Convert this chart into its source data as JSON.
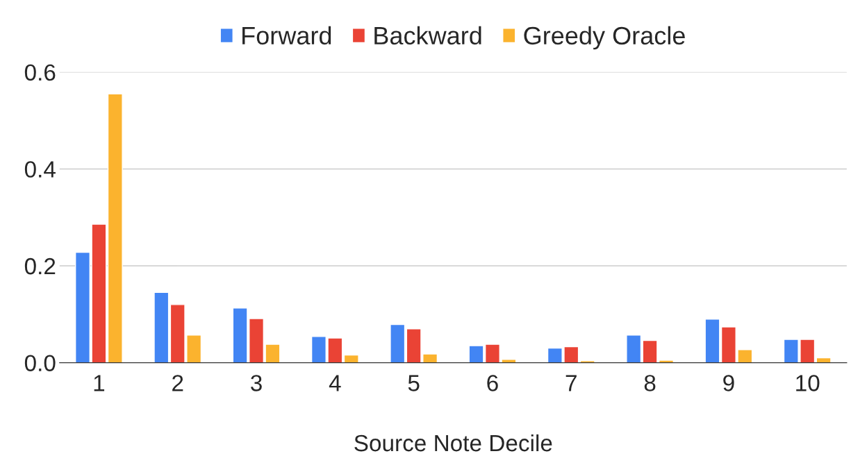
{
  "chart_data": {
    "type": "bar",
    "xlabel": "Source Note Decile",
    "categories": [
      "1",
      "2",
      "3",
      "4",
      "5",
      "6",
      "7",
      "8",
      "9",
      "10"
    ],
    "series": [
      {
        "name": "Forward",
        "color": "#4285f4",
        "values": [
          0.228,
          0.145,
          0.113,
          0.054,
          0.079,
          0.035,
          0.03,
          0.057,
          0.09,
          0.048
        ]
      },
      {
        "name": "Backward",
        "color": "#ea4335",
        "values": [
          0.286,
          0.12,
          0.091,
          0.051,
          0.07,
          0.038,
          0.033,
          0.046,
          0.074,
          0.048
        ]
      },
      {
        "name": "Greedy Oracle",
        "color": "#fbb32e",
        "values": [
          0.555,
          0.057,
          0.038,
          0.016,
          0.018,
          0.007,
          0.004,
          0.005,
          0.027,
          0.01
        ]
      }
    ],
    "ylim": [
      0,
      0.6
    ],
    "yticks": [
      {
        "value": 0,
        "label": "0.0"
      },
      0.2,
      0.4,
      0.6
    ],
    "grid": "y",
    "legend": "top"
  }
}
